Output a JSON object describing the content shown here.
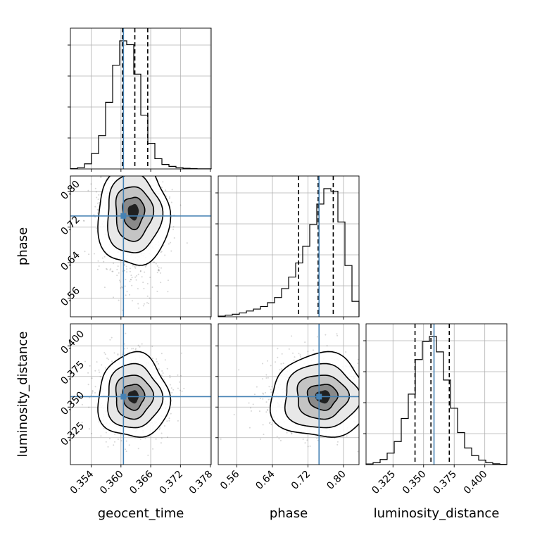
{
  "chart_data": {
    "type": "corner",
    "parameters": [
      "geocent_time",
      "phase",
      "luminosity_distance"
    ],
    "truths": [
      0.3605,
      0.745,
      0.3585
    ],
    "quantile_lines": {
      "geocent_time": [
        0.3603,
        0.3628,
        0.3654
      ],
      "phase": [
        0.699,
        0.743,
        0.777
      ],
      "luminosity_distance": [
        0.343,
        0.356,
        0.371
      ]
    },
    "ranges": {
      "geocent_time": [
        0.3498,
        0.3782
      ],
      "phase": [
        0.518,
        0.835
      ],
      "luminosity_distance": [
        0.303,
        0.418
      ]
    },
    "ticks": {
      "geocent_time": [
        "0.354",
        "0.360",
        "0.366",
        "0.372",
        "0.378"
      ],
      "phase": [
        "0.56",
        "0.64",
        "0.72",
        "0.80"
      ],
      "luminosity_distance": [
        "0.325",
        "0.350",
        "0.375",
        "0.400"
      ]
    },
    "histograms": {
      "geocent_time": [
        0.002,
        0.01,
        0.04,
        0.12,
        0.26,
        0.52,
        0.81,
        1.0,
        0.97,
        0.74,
        0.42,
        0.2,
        0.08,
        0.035,
        0.02,
        0.01,
        0.005,
        0.003,
        0.001,
        0.001
      ],
      "phase": [
        0.005,
        0.012,
        0.02,
        0.03,
        0.045,
        0.06,
        0.08,
        0.11,
        0.15,
        0.22,
        0.31,
        0.42,
        0.55,
        0.72,
        0.88,
        1.0,
        0.98,
        0.74,
        0.4,
        0.12
      ],
      "luminosity_distance": [
        0.005,
        0.015,
        0.04,
        0.09,
        0.18,
        0.36,
        0.55,
        0.82,
        0.96,
        1.0,
        0.88,
        0.66,
        0.44,
        0.25,
        0.13,
        0.07,
        0.035,
        0.015,
        0.006,
        0.002
      ]
    },
    "grid": true
  }
}
